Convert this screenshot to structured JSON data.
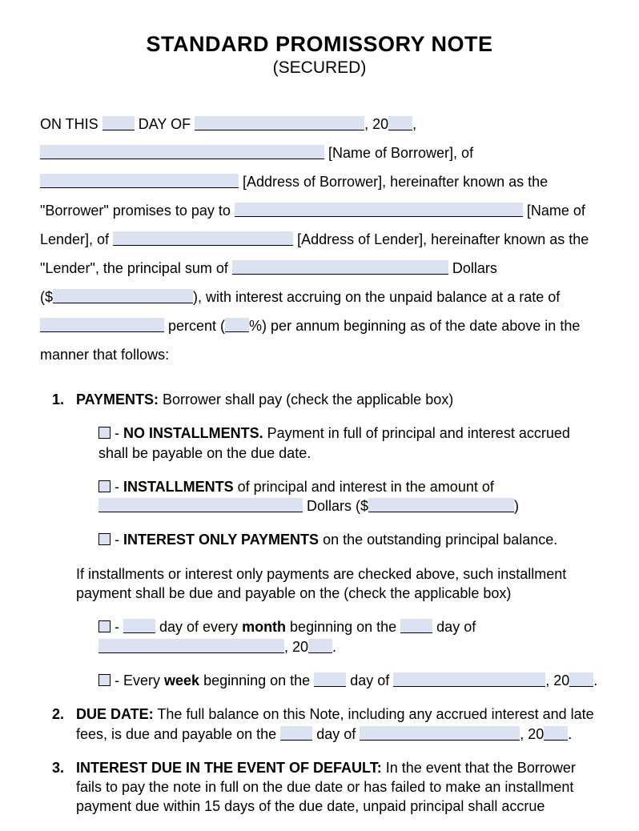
{
  "colors": {
    "fill_bg": "#dbe2f2",
    "text": "#000000",
    "page_bg": "#ffffff"
  },
  "typography": {
    "title_fontsize": 27,
    "subtitle_fontsize": 21,
    "body_fontsize": 18,
    "font_family": "Arial"
  },
  "title": "STANDARD PROMISSORY NOTE",
  "subtitle": "(SECURED)",
  "intro": {
    "on_this": "ON THIS",
    "day_of": "DAY OF",
    "twenty": ", 20",
    "comma": ",",
    "name_of_borrower": " [Name of Borrower], of",
    "address_of_borrower": " [Address of Borrower], hereinafter known as the",
    "borrower_promises": "\"Borrower\" promises to pay to ",
    "name_of_lender": " [Name of",
    "lender_of": "Lender], of ",
    "address_of_lender": " [Address of Lender], hereinafter known as the",
    "lender_principal": "\"Lender\", the principal sum of ",
    "dollars": " Dollars",
    "open_paren_dollar": "($",
    "close_paren_interest": "), with interest accruing on the unpaid balance at a rate of",
    "percent_open": " percent (",
    "percent_close": "%) per annum beginning as of the date above in the",
    "manner": "manner that follows:"
  },
  "sections": {
    "s1": {
      "num": "1.",
      "label": "PAYMENTS:",
      "text": " Borrower shall pay (check the applicable box)",
      "opt1_dash": " - ",
      "opt1_bold": "NO INSTALLMENTS.",
      "opt1_text": "  Payment in full of principal and interest accrued shall be payable on the due date.",
      "opt2_dash": " - ",
      "opt2_bold": "INSTALLMENTS",
      "opt2_text": " of principal and interest in the amount of",
      "opt2_dollars": " Dollars ($",
      "opt2_close": ")",
      "opt3_dash": " - ",
      "opt3_bold": "INTEREST ONLY PAYMENTS",
      "opt3_text": " on the outstanding principal balance.",
      "schedule_text": "If installments or interest only payments are checked above, such installment payment shall be due and payable on the (check the applicable box)",
      "sched1_dash": " - ",
      "sched1_a": " day of every ",
      "sched1_month": "month",
      "sched1_b": " beginning on the ",
      "sched1_c": " day of",
      "sched1_twenty": ", 20",
      "sched1_period": ".",
      "sched2_dash": " - Every ",
      "sched2_week": "week",
      "sched2_a": " beginning on the ",
      "sched2_b": " day of ",
      "sched2_twenty": ", 20",
      "sched2_period": "."
    },
    "s2": {
      "num": "2.",
      "label": "DUE DATE:",
      "text_a": " The full balance on this Note, including any accrued interest and late fees, is due and payable on the ",
      "text_b": " day of ",
      "text_c": ", 20",
      "text_d": "."
    },
    "s3": {
      "num": "3.",
      "label": "INTEREST DUE IN THE EVENT OF DEFAULT:",
      "text": " In the event that the Borrower fails to pay the note in full on the due date or has failed to make an installment payment due within 15 days of the due date, unpaid principal shall accrue"
    }
  }
}
